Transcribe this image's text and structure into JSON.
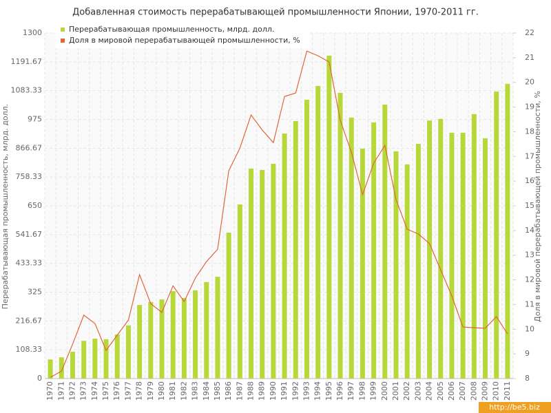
{
  "chart_data": {
    "type": "bar-line",
    "title": "Добавленная стоимость перерабатывающей промышленности Японии, 1970-2011 гг.",
    "y_label": "Перерабатывающая промышленность, млрд. долл.",
    "y2_label": "Доля в мировой перерабатывающей промышленности, %",
    "watermark": "http://be5.biz",
    "categories": [
      "1970",
      "1971",
      "1972",
      "1973",
      "1974",
      "1975",
      "1976",
      "1977",
      "1978",
      "1979",
      "1980",
      "1981",
      "1982",
      "1983",
      "1984",
      "1985",
      "1986",
      "1987",
      "1988",
      "1989",
      "1990",
      "1991",
      "1992",
      "1993",
      "1994",
      "1995",
      "1996",
      "1997",
      "1998",
      "1999",
      "2000",
      "2001",
      "2002",
      "2003",
      "2004",
      "2005",
      "2006",
      "2007",
      "2008",
      "2009",
      "2010",
      "2011"
    ],
    "series": [
      {
        "name": "Перерабатывающая промышленность, млрд. долл.",
        "type": "bar",
        "color": "#b8d83a",
        "values": [
          72,
          80,
          101,
          142,
          150,
          148,
          166,
          200,
          277,
          288,
          298,
          329,
          303,
          332,
          363,
          383,
          549,
          655,
          790,
          785,
          808,
          922,
          969,
          1049,
          1101,
          1215,
          1075,
          982,
          865,
          964,
          1031,
          855,
          806,
          883,
          971,
          977,
          925,
          925,
          995,
          904,
          1080,
          1109
        ]
      },
      {
        "name": "Доля в мировой перерабатывающей промышленности, %",
        "type": "line",
        "axis": "y2",
        "color": "#e0663a",
        "values": [
          8.05,
          8.3,
          9.4,
          10.57,
          10.23,
          9.14,
          9.76,
          10.37,
          12.21,
          11.04,
          10.68,
          11.76,
          11.12,
          12.07,
          12.74,
          13.24,
          16.42,
          17.34,
          18.68,
          18.07,
          17.56,
          19.43,
          19.57,
          21.27,
          21.08,
          20.83,
          18.46,
          17.17,
          15.45,
          16.73,
          17.45,
          15.25,
          14.05,
          13.86,
          13.47,
          12.41,
          11.35,
          10.09,
          10.06,
          10.04,
          10.51,
          9.81
        ]
      }
    ],
    "ylim": [
      0,
      1300
    ],
    "yticks": [
      0,
      108.33,
      216.67,
      325,
      433.33,
      541.67,
      650,
      758.33,
      866.67,
      975,
      1083.33,
      1191.67,
      1300
    ],
    "y2lim": [
      8,
      22
    ],
    "y2ticks": [
      8,
      9,
      10,
      11,
      12,
      13,
      14,
      15,
      16,
      17,
      18,
      19,
      20,
      21,
      22
    ],
    "grid": true,
    "legend": "top-left"
  }
}
